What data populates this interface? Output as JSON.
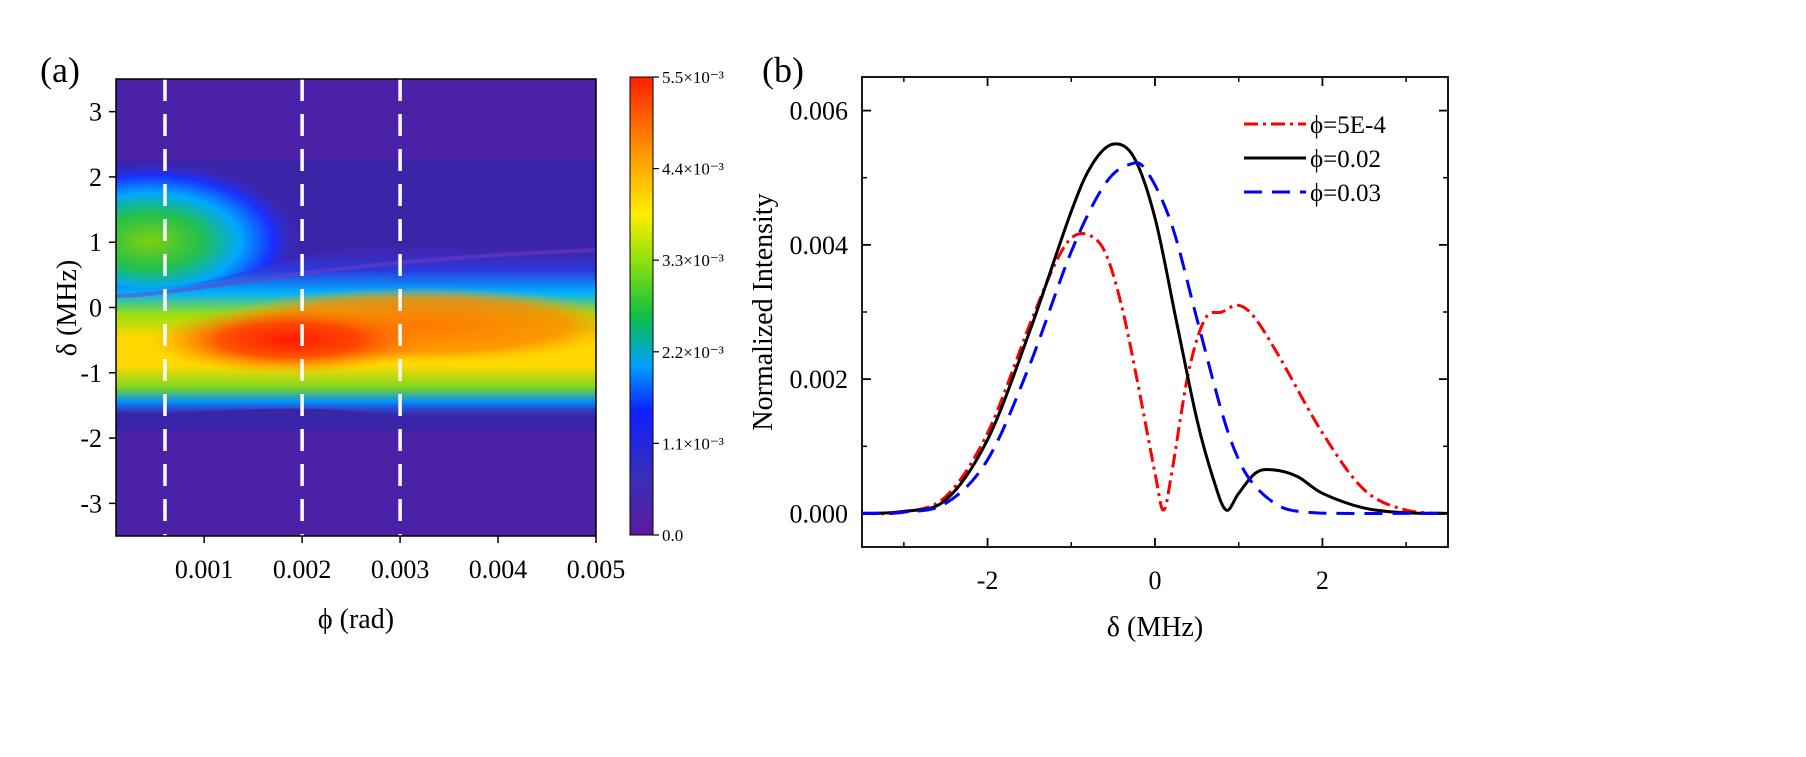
{
  "colors": {
    "red_series": "#ff0000",
    "black_series": "#000000",
    "blue_series": "#0000ff",
    "guide_lines": "#ffffff"
  },
  "chart_data": [
    {
      "panel": "(a)",
      "type": "heatmap",
      "xlabel": "ϕ (rad)",
      "ylabel": "δ (MHz)",
      "xlim": [
        0.0001,
        0.005
      ],
      "ylim": [
        -3.5,
        3.5
      ],
      "xticks": [
        "0.001",
        "0.002",
        "0.003",
        "0.004",
        "0.005"
      ],
      "yticks": [
        "-3",
        "-2",
        "-1",
        "0",
        "1",
        "2",
        "3"
      ],
      "colormap": "rainbow (purple → blue → green → yellow → orange → red)",
      "colorbar": {
        "range": [
          0,
          0.0055
        ],
        "ticks": [
          "0.0",
          "1.1×10⁻³",
          "2.2×10⁻³",
          "3.3×10⁻³",
          "4.4×10⁻³",
          "5.5×10⁻³"
        ]
      },
      "dashed_vertical_lines_at_phi": [
        0.0006,
        0.002,
        0.003
      ],
      "features": [
        {
          "region": "upper lobe",
          "phi": [
            0.0001,
            0.0013
          ],
          "delta_center": 1.0,
          "peak_value": 0.003
        },
        {
          "region": "lower lobe",
          "phi": [
            0.0001,
            0.005
          ],
          "delta_center": -0.6,
          "peak_value": 0.0055,
          "peak_phi": 0.0023
        }
      ]
    },
    {
      "panel": "(b)",
      "type": "line",
      "xlabel": "δ (MHz)",
      "ylabel": "Normalized Intensity",
      "xlim": [
        -3.5,
        3.5
      ],
      "ylim": [
        -0.0005,
        0.0065
      ],
      "xticks": [
        "-2",
        "0",
        "2"
      ],
      "yticks": [
        "0.000",
        "0.002",
        "0.004",
        "0.006"
      ],
      "legend_position": "top-right",
      "series": [
        {
          "name": "ϕ=5E-4",
          "style": "dash-dot",
          "color": "#ff0000",
          "x": [
            -3.5,
            -3.0,
            -2.5,
            -2.0,
            -1.5,
            -1.2,
            -1.0,
            -0.8,
            -0.6,
            -0.4,
            -0.2,
            0.0,
            0.1,
            0.2,
            0.4,
            0.6,
            0.8,
            1.0,
            1.2,
            1.5,
            2.0,
            2.5,
            3.0,
            3.5
          ],
          "y": [
            0.0,
            2e-05,
            0.00025,
            0.0012,
            0.0028,
            0.0037,
            0.0041,
            0.00415,
            0.0039,
            0.0031,
            0.0019,
            0.0006,
            5e-05,
            0.0006,
            0.0021,
            0.0029,
            0.003,
            0.0031,
            0.0029,
            0.0023,
            0.0012,
            0.00035,
            5e-05,
            0.0
          ]
        },
        {
          "name": "ϕ=0.02",
          "style": "solid",
          "color": "#000000",
          "x": [
            -3.5,
            -3.0,
            -2.5,
            -2.0,
            -1.5,
            -1.0,
            -0.75,
            -0.5,
            -0.25,
            0.0,
            0.25,
            0.5,
            0.7,
            0.85,
            1.0,
            1.2,
            1.4,
            1.7,
            2.0,
            2.5,
            3.0,
            3.5
          ],
          "y": [
            0.0,
            3e-05,
            0.0002,
            0.0011,
            0.0027,
            0.0045,
            0.0052,
            0.0055,
            0.0053,
            0.0044,
            0.0029,
            0.0014,
            0.0005,
            5e-05,
            0.0003,
            0.0006,
            0.00065,
            0.00055,
            0.0003,
            8e-05,
            1e-05,
            0.0
          ]
        },
        {
          "name": "ϕ=0.03",
          "style": "dashed",
          "color": "#0000ff",
          "x": [
            -3.5,
            -3.0,
            -2.5,
            -2.0,
            -1.5,
            -1.0,
            -0.6,
            -0.3,
            -0.1,
            0.2,
            0.5,
            0.8,
            1.0,
            1.2,
            1.5,
            1.8,
            2.2,
            3.0,
            3.5
          ],
          "y": [
            0.0,
            2e-05,
            0.00015,
            0.0008,
            0.0022,
            0.0039,
            0.0049,
            0.0052,
            0.0051,
            0.0043,
            0.0029,
            0.0015,
            0.0008,
            0.0004,
            0.0001,
            2e-05,
            0.0,
            0.0,
            0.0
          ]
        }
      ]
    }
  ]
}
